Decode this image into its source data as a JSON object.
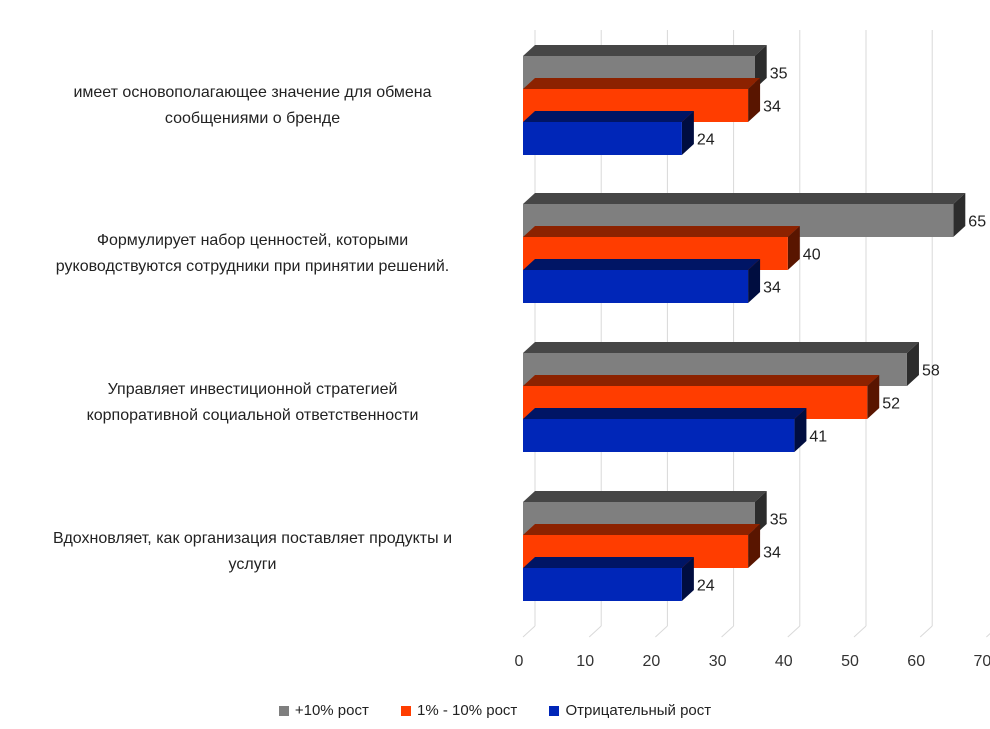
{
  "chart_data": {
    "type": "bar",
    "orientation": "horizontal",
    "style": "3d",
    "categories": [
      "имеет основополагающее значение для обмена сообщениями о бренде",
      "Формулирует набор ценностей, которыми руководствуются сотрудники при принятии решений.",
      "Управляет инвестиционной стратегией корпоративной социальной ответственности",
      "Вдохновляет, как организация поставляет продукты и услуги"
    ],
    "category_lines": [
      [
        "имеет основополагающее значение для обмена",
        "сообщениями о бренде"
      ],
      [
        "Формулирует набор ценностей, которыми",
        "руководствуются сотрудники при принятии решений."
      ],
      [
        "Управляет инвестиционной стратегией",
        "корпоративной социальной ответственности"
      ],
      [
        "Вдохновляет, как организация поставляет продукты и",
        "услуги"
      ]
    ],
    "series": [
      {
        "name": "+10% рост",
        "color": "#7f7f7f",
        "values": [
          35,
          65,
          58,
          35
        ]
      },
      {
        "name": "1% - 10% рост",
        "color": "#ff3d00",
        "values": [
          34,
          40,
          52,
          34
        ]
      },
      {
        "name": "Отрицательный рост",
        "color": "#0026b8",
        "values": [
          24,
          34,
          41,
          24
        ]
      }
    ],
    "xlim": [
      0,
      70
    ],
    "xticks": [
      "0",
      "10",
      "20",
      "30",
      "40",
      "50",
      "60",
      "70"
    ],
    "grid": true,
    "data_labels": true,
    "legend": "bottom"
  }
}
